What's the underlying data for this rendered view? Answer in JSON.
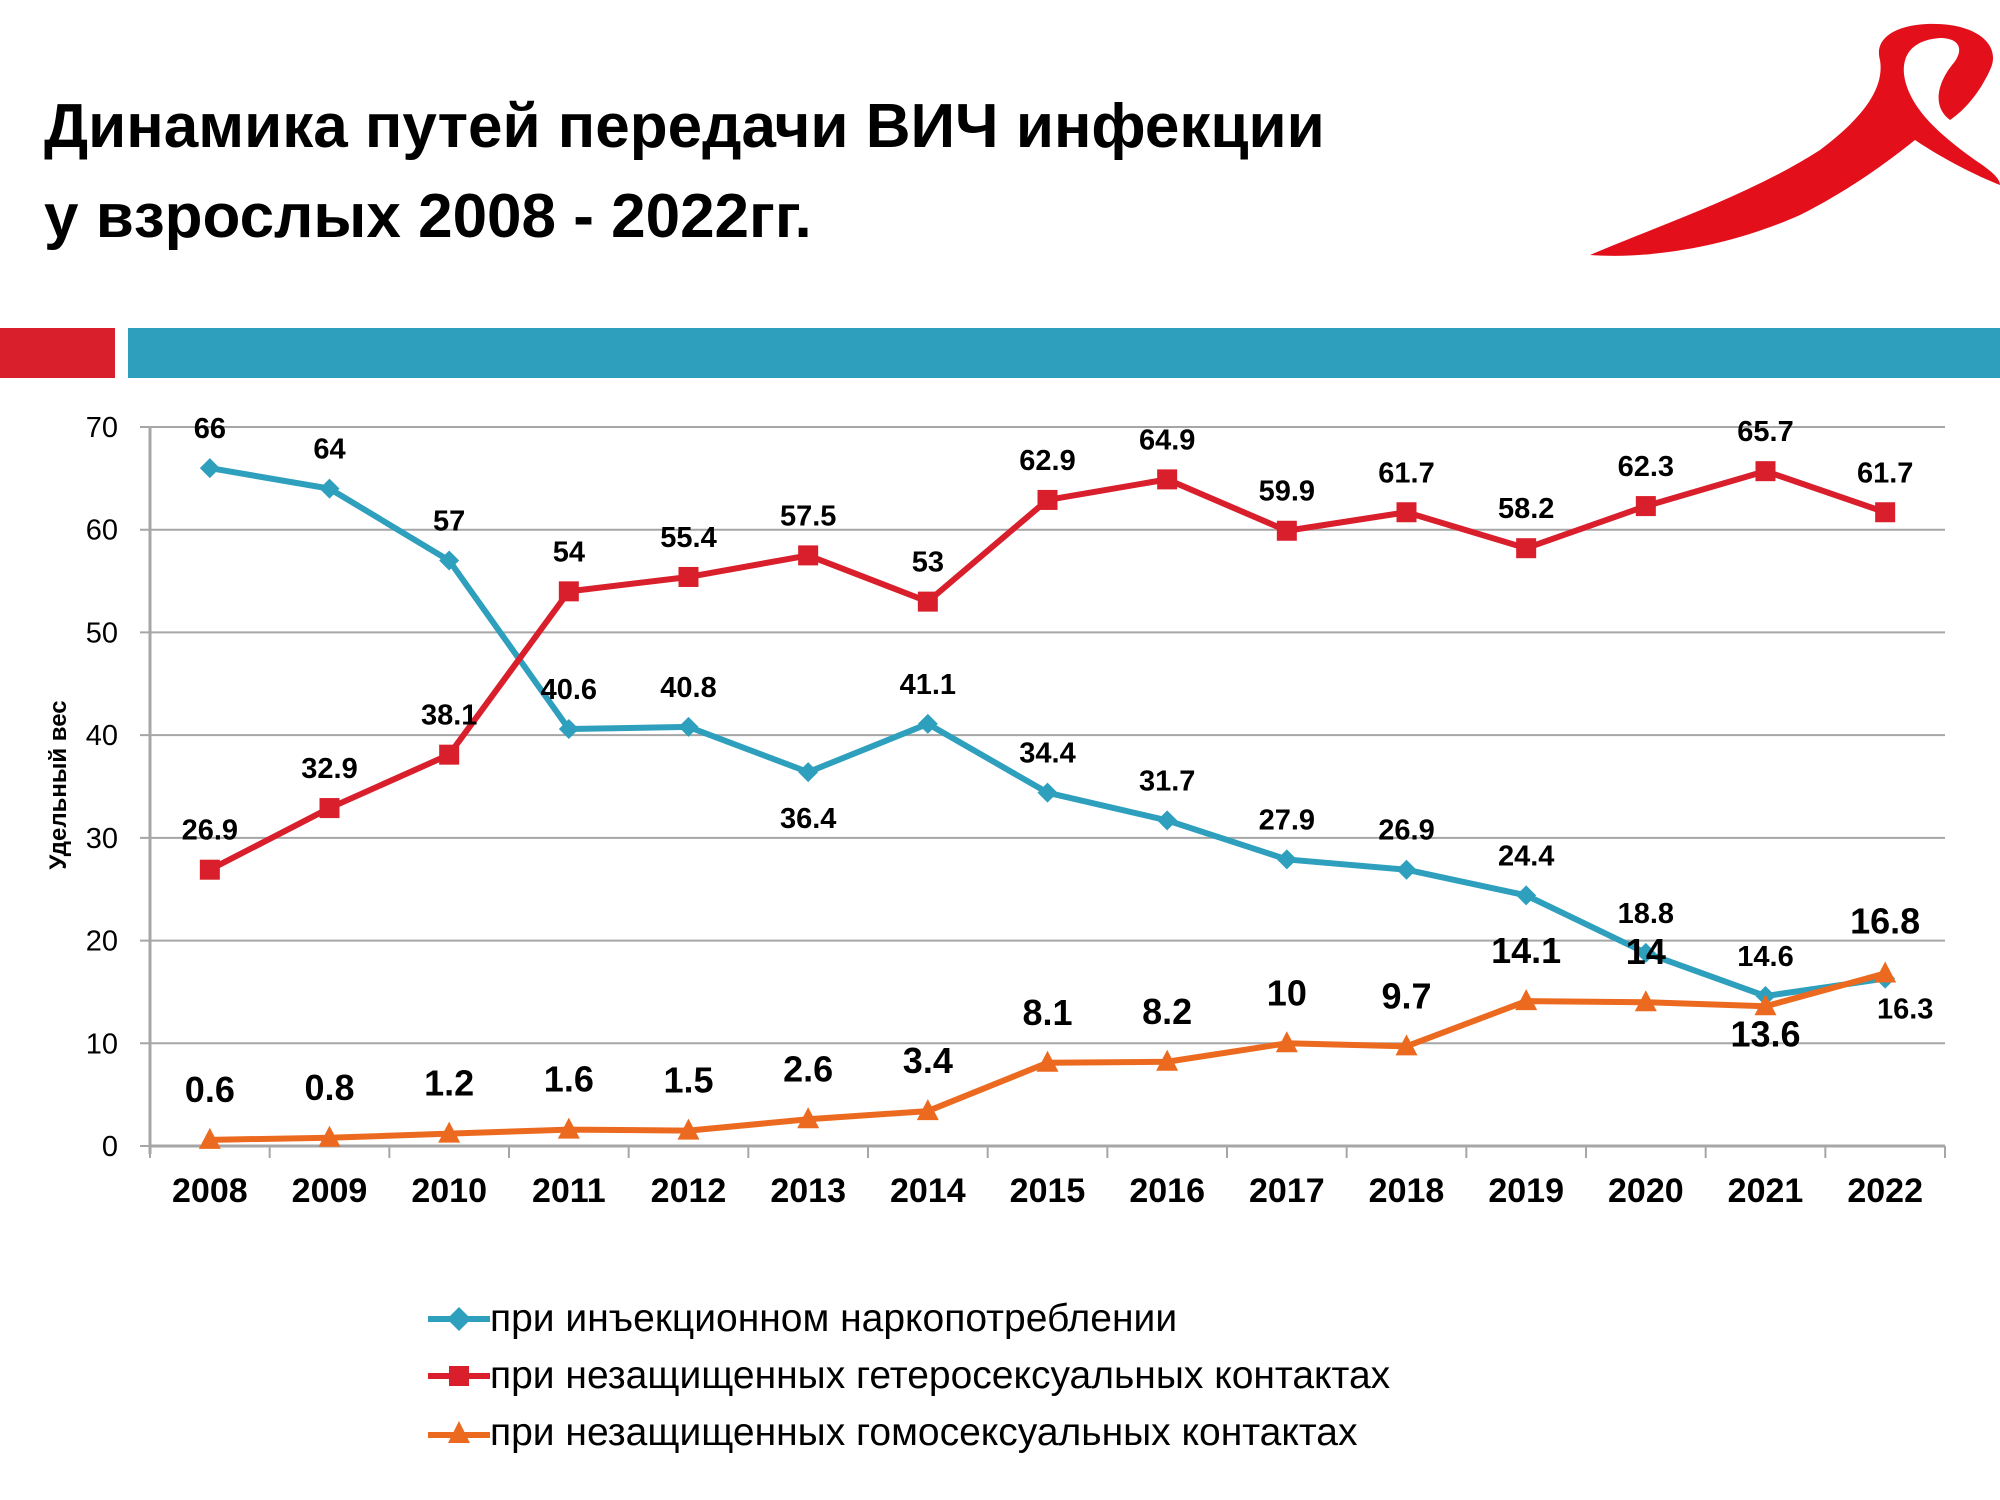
{
  "header": {
    "title_line1": "Динамика путей передачи ВИЧ инфекции",
    "title_line2": "у взрослых 2008 - 2022гг.",
    "logo_icon": "red-ribbon-icon"
  },
  "colors": {
    "accent_red": "#d91f2b",
    "accent_blue": "#2ea0bd",
    "series_injection": "#2ea0bd",
    "series_hetero": "#d91f2b",
    "series_homo": "#ec6a1f",
    "grid": "#a6a6a6"
  },
  "chart_data": {
    "type": "line",
    "title": "",
    "xlabel": "",
    "ylabel": "Удельный вес",
    "ylim": [
      0,
      70
    ],
    "yticks": [
      0,
      10,
      20,
      30,
      40,
      50,
      60,
      70
    ],
    "grid": true,
    "legend_position": "bottom",
    "categories": [
      "2008",
      "2009",
      "2010",
      "2011",
      "2012",
      "2013",
      "2014",
      "2015",
      "2016",
      "2017",
      "2018",
      "2019",
      "2020",
      "2021",
      "2022"
    ],
    "series": [
      {
        "name": "при инъекционном наркопотреблении",
        "marker": "diamond",
        "color": "#2ea0bd",
        "values": [
          66,
          64,
          57,
          40.6,
          40.8,
          36.4,
          41.1,
          34.4,
          31.7,
          27.9,
          26.9,
          24.4,
          18.8,
          14.6,
          16.3
        ],
        "labels": [
          "66",
          "64",
          "57",
          "40.6",
          "40.8",
          "36.4",
          "41.1",
          "34.4",
          "31.7",
          "27.9",
          "26.9",
          "24.4",
          "18.8",
          "14.6",
          "16.3"
        ]
      },
      {
        "name": "при незащищенных гетеросексуальных контактах",
        "marker": "square",
        "color": "#d91f2b",
        "values": [
          26.9,
          32.9,
          38.1,
          54,
          55.4,
          57.5,
          53,
          62.9,
          64.9,
          59.9,
          61.7,
          58.2,
          62.3,
          65.7,
          61.7
        ],
        "labels": [
          "26.9",
          "32.9",
          "38.1",
          "54",
          "55.4",
          "57.5",
          "53",
          "62.9",
          "64.9",
          "59.9",
          "61.7",
          "58.2",
          "62.3",
          "65.7",
          "61.7"
        ]
      },
      {
        "name": "при незащищенных гомосексуальных контактах",
        "marker": "triangle",
        "color": "#ec6a1f",
        "values": [
          0.6,
          0.8,
          1.2,
          1.6,
          1.5,
          2.6,
          3.4,
          8.1,
          8.2,
          10,
          9.7,
          14.1,
          14,
          13.6,
          16.8
        ],
        "labels": [
          "0.6",
          "0.8",
          "1.2",
          "1.6",
          "1.5",
          "2.6",
          "3.4",
          "8.1",
          "8.2",
          "10",
          "9.7",
          "14.1",
          "14",
          "13.6",
          "16.8"
        ]
      }
    ]
  }
}
